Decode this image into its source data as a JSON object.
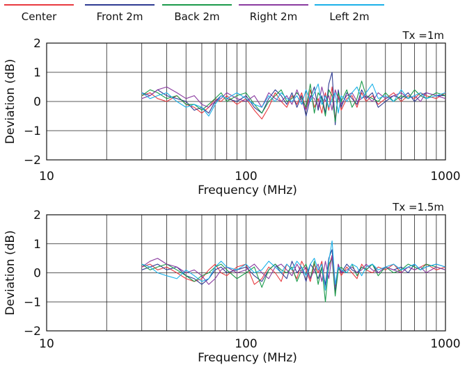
{
  "legend": [
    {
      "name": "Center",
      "color": "#e8393f"
    },
    {
      "name": "Front 2m",
      "color": "#2e3a92"
    },
    {
      "name": "Back 2m",
      "color": "#1a9a4a"
    },
    {
      "name": "Right 2m",
      "color": "#8a3aa0"
    },
    {
      "name": "Left 2m",
      "color": "#1ab0e8"
    }
  ],
  "chart_data": [
    {
      "type": "line",
      "title": "Tx =1m",
      "xlabel": "Frequency (MHz)",
      "ylabel": "Deviation (dB)",
      "xscale": "log",
      "xlim": [
        10,
        1000
      ],
      "ylim": [
        -2,
        2
      ],
      "xticks": [
        "10",
        "100",
        "1000"
      ],
      "yticks": [
        "2",
        "1",
        "0",
        "−1",
        "−2"
      ],
      "grid": true,
      "x": [
        30,
        33,
        36,
        40,
        45,
        50,
        55,
        60,
        65,
        70,
        75,
        80,
        90,
        100,
        110,
        120,
        130,
        140,
        150,
        160,
        170,
        180,
        190,
        200,
        210,
        220,
        230,
        240,
        250,
        260,
        270,
        280,
        290,
        300,
        320,
        340,
        360,
        380,
        400,
        430,
        460,
        500,
        550,
        600,
        650,
        700,
        750,
        800,
        900,
        1000
      ],
      "series": [
        {
          "name": "Center",
          "values": [
            0.2,
            0.3,
            0.1,
            0.0,
            0.2,
            -0.1,
            -0.2,
            -0.4,
            -0.2,
            0.1,
            0.0,
            0.2,
            -0.1,
            0.1,
            -0.3,
            -0.6,
            -0.2,
            0.3,
            0.0,
            -0.2,
            0.2,
            -0.1,
            0.3,
            -0.3,
            0.4,
            -0.2,
            0.1,
            -0.4,
            0.3,
            -0.3,
            0.5,
            -0.6,
            0.2,
            -0.3,
            0.1,
            0.2,
            -0.2,
            0.3,
            0.0,
            0.2,
            -0.1,
            0.1,
            0.3,
            0.0,
            0.2,
            0.1,
            0.3,
            0.2,
            0.1,
            0.3
          ]
        },
        {
          "name": "Front 2m",
          "values": [
            0.3,
            0.2,
            0.4,
            0.2,
            0.1,
            0.0,
            -0.3,
            -0.2,
            -0.4,
            0.0,
            0.2,
            0.1,
            0.0,
            0.2,
            -0.2,
            -0.4,
            0.1,
            0.4,
            0.2,
            -0.1,
            0.3,
            -0.2,
            0.2,
            -0.5,
            0.1,
            0.5,
            -0.3,
            0.2,
            -0.4,
            0.6,
            1.0,
            -0.8,
            0.4,
            -0.2,
            0.3,
            0.1,
            -0.1,
            0.4,
            0.1,
            0.3,
            -0.2,
            0.0,
            0.2,
            0.1,
            0.3,
            0.0,
            0.2,
            0.3,
            0.2,
            0.2
          ]
        },
        {
          "name": "Back 2m",
          "values": [
            0.2,
            0.4,
            0.3,
            0.1,
            0.2,
            -0.1,
            -0.1,
            -0.3,
            -0.1,
            0.1,
            0.3,
            0.0,
            0.2,
            0.3,
            -0.1,
            -0.4,
            0.0,
            0.2,
            0.4,
            0.0,
            0.1,
            0.3,
            0.1,
            -0.2,
            0.6,
            -0.4,
            0.3,
            0.1,
            -0.5,
            0.4,
            0.2,
            -0.7,
            0.3,
            0.0,
            0.4,
            -0.2,
            0.1,
            0.7,
            0.2,
            0.1,
            0.0,
            0.3,
            0.0,
            0.2,
            0.1,
            0.4,
            0.2,
            0.1,
            0.3,
            0.2
          ]
        },
        {
          "name": "Right 2m",
          "values": [
            0.1,
            0.2,
            0.4,
            0.5,
            0.3,
            0.1,
            0.2,
            -0.1,
            -0.2,
            0.0,
            0.1,
            0.3,
            0.1,
            0.0,
            0.2,
            -0.2,
            0.3,
            0.1,
            0.0,
            0.2,
            -0.1,
            0.4,
            0.0,
            -0.3,
            0.2,
            0.1,
            -0.2,
            0.5,
            0.0,
            0.2,
            -0.3,
            0.4,
            0.1,
            -0.1,
            0.2,
            0.3,
            0.0,
            0.1,
            0.2,
            0.0,
            0.3,
            0.1,
            0.2,
            0.3,
            0.1,
            0.2,
            0.0,
            0.3,
            0.2,
            0.1
          ]
        },
        {
          "name": "Left 2m",
          "values": [
            0.3,
            0.1,
            0.2,
            0.3,
            0.0,
            -0.2,
            -0.1,
            -0.2,
            -0.5,
            -0.1,
            0.2,
            0.1,
            0.3,
            0.1,
            -0.1,
            -0.2,
            0.2,
            0.0,
            0.3,
            0.1,
            0.0,
            0.2,
            -0.1,
            0.4,
            0.0,
            0.3,
            0.6,
            -0.1,
            0.2,
            -0.2,
            0.1,
            0.3,
            -0.4,
            0.2,
            0.0,
            0.3,
            0.5,
            0.1,
            0.3,
            0.6,
            0.1,
            0.2,
            0.0,
            0.4,
            0.1,
            0.2,
            0.3,
            0.1,
            0.2,
            0.3
          ]
        }
      ]
    },
    {
      "type": "line",
      "title": "Tx =1.5m",
      "xlabel": "Frequency (MHz)",
      "ylabel": "Deviation (dB)",
      "xscale": "log",
      "xlim": [
        10,
        1000
      ],
      "ylim": [
        -2,
        2
      ],
      "xticks": [
        "10",
        "100",
        "1000"
      ],
      "yticks": [
        "2",
        "1",
        "0",
        "−1",
        "−2"
      ],
      "grid": true,
      "x": [
        30,
        33,
        36,
        40,
        45,
        50,
        55,
        60,
        65,
        70,
        75,
        80,
        90,
        100,
        110,
        120,
        130,
        140,
        150,
        160,
        170,
        180,
        190,
        200,
        210,
        220,
        230,
        240,
        250,
        260,
        270,
        280,
        290,
        300,
        320,
        340,
        360,
        380,
        400,
        430,
        460,
        500,
        550,
        600,
        650,
        700,
        750,
        800,
        900,
        1000
      ],
      "series": [
        {
          "name": "Center",
          "values": [
            0.2,
            0.3,
            0.1,
            0.2,
            0.0,
            -0.2,
            -0.3,
            -0.2,
            0.1,
            0.3,
            0.0,
            -0.1,
            0.2,
            0.3,
            -0.4,
            -0.2,
            0.2,
            0.0,
            -0.3,
            0.3,
            0.1,
            -0.2,
            0.4,
            0.1,
            -0.3,
            0.3,
            0.0,
            0.4,
            -0.5,
            0.2,
            0.6,
            -0.7,
            0.3,
            -0.1,
            0.2,
            0.0,
            -0.2,
            0.3,
            0.1,
            0.0,
            0.2,
            0.1,
            0.3,
            0.0,
            0.2,
            0.1,
            0.2,
            0.3,
            0.1,
            0.2
          ]
        },
        {
          "name": "Front 2m",
          "values": [
            0.1,
            0.2,
            0.3,
            0.1,
            0.2,
            -0.1,
            -0.2,
            -0.4,
            -0.2,
            0.1,
            0.2,
            0.0,
            0.1,
            0.2,
            -0.1,
            -0.3,
            0.1,
            0.3,
            0.0,
            -0.2,
            0.4,
            0.0,
            0.2,
            -0.3,
            0.3,
            0.1,
            -0.2,
            0.2,
            -0.4,
            0.5,
            0.8,
            -0.6,
            0.2,
            0.0,
            0.3,
            0.1,
            0.0,
            0.2,
            0.1,
            0.3,
            0.0,
            0.2,
            0.1,
            0.2,
            0.0,
            0.3,
            0.1,
            0.2,
            0.3,
            0.2
          ]
        },
        {
          "name": "Back 2m",
          "values": [
            0.3,
            0.1,
            0.2,
            0.3,
            0.1,
            -0.1,
            -0.3,
            -0.1,
            0.0,
            0.2,
            0.3,
            0.1,
            -0.2,
            0.0,
            0.2,
            -0.5,
            0.1,
            0.3,
            0.1,
            0.0,
            0.2,
            -0.3,
            0.1,
            0.3,
            -0.2,
            0.4,
            -0.4,
            0.2,
            -1.0,
            0.3,
            0.5,
            -0.8,
            0.1,
            0.2,
            0.0,
            0.3,
            -0.1,
            0.2,
            0.1,
            0.3,
            -0.1,
            0.2,
            0.0,
            0.1,
            0.3,
            0.2,
            0.1,
            0.3,
            0.2,
            0.1
          ]
        },
        {
          "name": "Right 2m",
          "values": [
            0.2,
            0.4,
            0.5,
            0.3,
            0.2,
            0.0,
            0.1,
            -0.1,
            -0.4,
            -0.2,
            0.1,
            0.2,
            0.0,
            0.1,
            0.3,
            0.0,
            -0.2,
            0.2,
            0.3,
            0.1,
            -0.1,
            0.3,
            0.0,
            0.2,
            -0.2,
            0.1,
            0.3,
            -0.3,
            0.4,
            -0.2,
            0.6,
            -0.5,
            0.3,
            0.0,
            0.1,
            0.2,
            0.0,
            0.1,
            0.3,
            0.1,
            0.0,
            0.2,
            0.1,
            0.0,
            0.2,
            0.1,
            0.2,
            0.0,
            0.2,
            0.1
          ]
        },
        {
          "name": "Left 2m",
          "values": [
            0.3,
            0.2,
            0.0,
            -0.1,
            -0.2,
            0.1,
            -0.1,
            -0.3,
            -0.2,
            0.2,
            0.4,
            0.2,
            0.1,
            0.3,
            0.0,
            0.1,
            0.4,
            0.2,
            0.0,
            0.3,
            0.1,
            0.4,
            0.2,
            -0.1,
            0.3,
            0.5,
            0.1,
            0.3,
            -0.6,
            0.4,
            1.1,
            -0.4,
            0.2,
            0.1,
            0.0,
            0.3,
            0.2,
            -0.1,
            0.2,
            0.3,
            0.1,
            0.2,
            0.3,
            0.1,
            0.2,
            0.3,
            0.1,
            0.2,
            0.3,
            0.2
          ]
        }
      ]
    }
  ]
}
